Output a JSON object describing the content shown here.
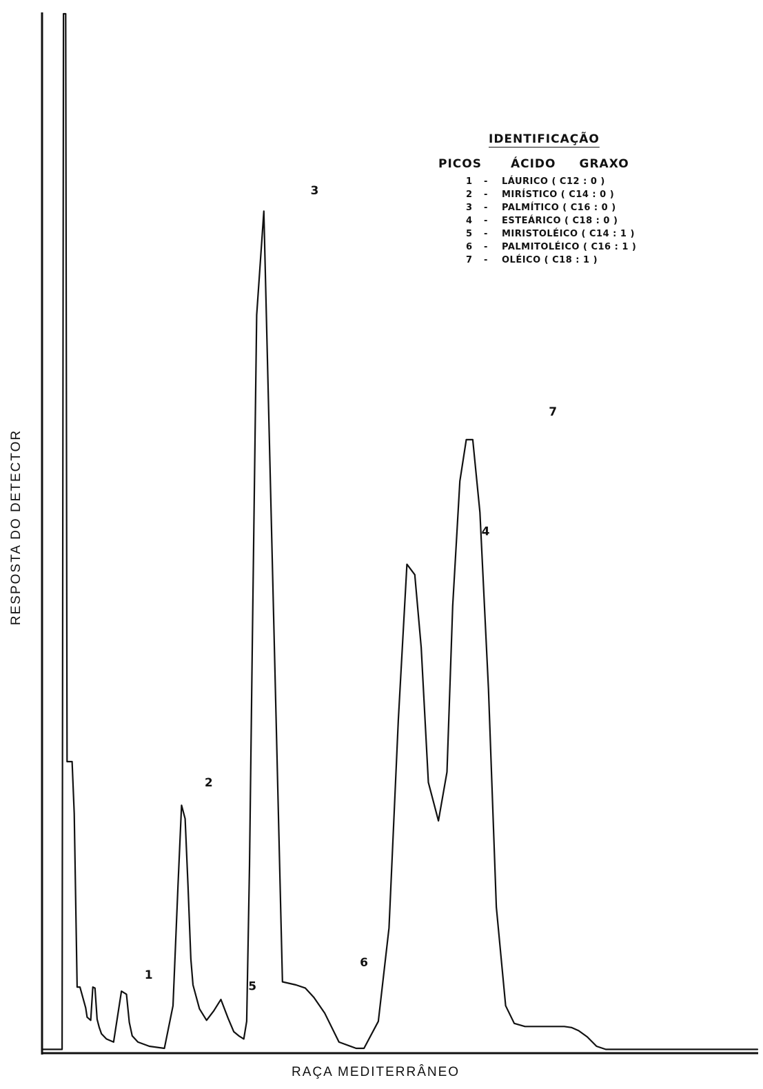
{
  "chart_data": {
    "type": "line",
    "title": "",
    "xlabel": "RAÇA MEDITERRÂNEO",
    "ylabel": "RESPOSTA DO DETECTOR",
    "grid": false,
    "legend_placement": "top-right",
    "x_ticks": [],
    "y_ticks": [],
    "xlim": [
      0,
      100
    ],
    "ylim": [
      0,
      100
    ],
    "series": [
      {
        "x": [
          0,
          2.8,
          3.0,
          3.3,
          3.5,
          4.2,
          4.5,
          4.9,
          5.3,
          6.1,
          6.3,
          6.8,
          7.1,
          7.4,
          7.7,
          8.0,
          8.3,
          9.0,
          10.0,
          11.1,
          11.8,
          12.2,
          12.6,
          13.4,
          15.0,
          17.1,
          18.3,
          19.0,
          19.5,
          20.0,
          20.4,
          20.8,
          21.1,
          22.0,
          23.0,
          24.0,
          25.0,
          26.0,
          26.8,
          27.5,
          28.2,
          28.6,
          29.0,
          29.4,
          30.0,
          31.0,
          33.6,
          35.5,
          36.8,
          38.0,
          39.5,
          41.5,
          43.9,
          45.0,
          47.0,
          48.5,
          49.8,
          51.0,
          52.1,
          53.0,
          54.0,
          55.4,
          56.6,
          57.4,
          58.4,
          59.3,
          60.2,
          61.2,
          62.4,
          63.5,
          64.8,
          66.0,
          67.5,
          68.7,
          70.0,
          71.5,
          73.0,
          74.0,
          75.0,
          76.2,
          77.5,
          78.8,
          80.0,
          82.0,
          85.0,
          88.0,
          90.5,
          92.0,
          94.0,
          96.5,
          100.0
        ],
        "y": [
          0.3,
          0.3,
          100,
          100,
          28.0,
          28.0,
          23.0,
          6.3,
          6.3,
          4.3,
          3.4,
          3.1,
          6.3,
          6.2,
          3.2,
          2.4,
          1.8,
          1.3,
          1.0,
          5.9,
          5.6,
          2.9,
          1.6,
          1.0,
          0.6,
          0.4,
          4.5,
          16.0,
          23.8,
          22.5,
          16.0,
          9.0,
          6.5,
          4.2,
          3.1,
          4.0,
          5.1,
          3.3,
          2.0,
          1.6,
          1.3,
          3.0,
          18.0,
          40.0,
          71.0,
          81.0,
          6.8,
          6.5,
          6.2,
          5.3,
          3.8,
          1.0,
          0.4,
          0.4,
          3.0,
          12.0,
          32.0,
          47.0,
          46.0,
          39.0,
          26.0,
          22.3,
          27.0,
          43.0,
          55.0,
          59.0,
          59.0,
          52.0,
          35.0,
          14.0,
          4.5,
          2.8,
          2.5,
          2.5,
          2.5,
          2.5,
          2.5,
          2.4,
          2.1,
          1.5,
          0.6,
          0.3,
          0.3,
          0.3,
          0.3,
          0.3,
          0.3,
          0.3,
          0.3,
          0.3,
          0.3
        ]
      }
    ],
    "peak_labels": [
      {
        "label": "1",
        "x": 14.9,
        "y": 7.1
      },
      {
        "label": "2",
        "x": 23.3,
        "y": 25.6
      },
      {
        "label": "3",
        "x": 38.1,
        "y": 82.6
      },
      {
        "label": "4",
        "x": 62.0,
        "y": 49.8
      },
      {
        "label": "5",
        "x": 29.4,
        "y": 6.0
      },
      {
        "label": "6",
        "x": 45.0,
        "y": 8.3
      },
      {
        "label": "7",
        "x": 71.4,
        "y": 61.3
      }
    ],
    "legend": {
      "title": "IDENTIFICAÇÃO",
      "col_peaks": "PICOS",
      "col_acid": "ÁCIDO",
      "col_fatty": "GRAXO",
      "entries": [
        {
          "num": "1",
          "dash": "-",
          "name": "LÁURICO  ( C12 : 0 )"
        },
        {
          "num": "2",
          "dash": "-",
          "name": "MIRÍSTICO  ( C14 : 0 )"
        },
        {
          "num": "3",
          "dash": "-",
          "name": "PALMÍTICO ( C16 : 0 )"
        },
        {
          "num": "4",
          "dash": "-",
          "name": "ESTEÁRICO ( C18 : 0 )"
        },
        {
          "num": "5",
          "dash": "-",
          "name": "MIRISTOLÉICO  ( C14 : 1 )"
        },
        {
          "num": "6",
          "dash": "-",
          "name": "PALMITOLÉICO  ( C16 : 1 )"
        },
        {
          "num": "7",
          "dash": "-",
          "name": "OLÉICO ( C18 : 1 )"
        }
      ]
    }
  }
}
